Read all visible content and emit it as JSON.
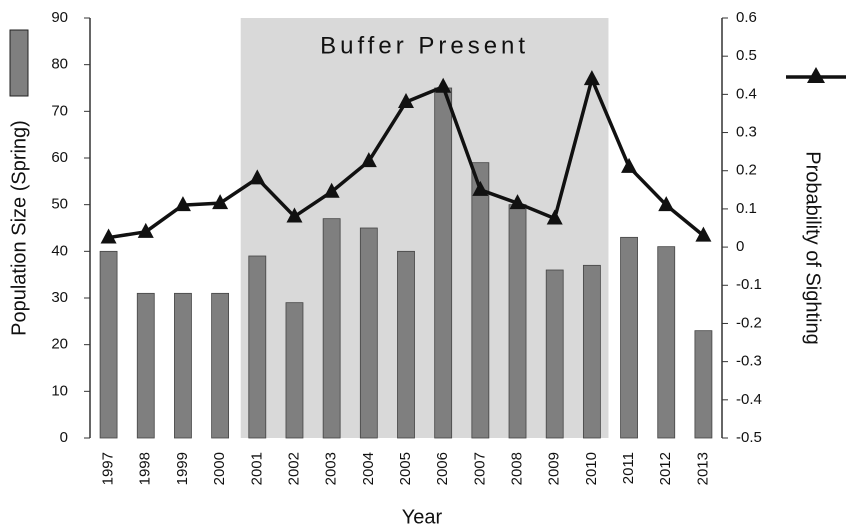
{
  "chart_data": {
    "type": "bar_line",
    "categories": [
      "1997",
      "1998",
      "1999",
      "2000",
      "2001",
      "2002",
      "2003",
      "2004",
      "2005",
      "2006",
      "2007",
      "2008",
      "2009",
      "2010",
      "2011",
      "2012",
      "2013"
    ],
    "xlabel": "Year",
    "ylabel": "Population Size (Spring)",
    "y2label": "Probability of Sighting",
    "ylim": [
      0,
      90
    ],
    "yticks": [
      0,
      10,
      20,
      30,
      40,
      50,
      60,
      70,
      80,
      90
    ],
    "y2lim": [
      -0.5,
      0.6
    ],
    "y2ticks": [
      -0.5,
      -0.4,
      -0.3,
      -0.2,
      -0.1,
      0,
      0.1,
      0.2,
      0.3,
      0.4,
      0.5,
      0.6
    ],
    "region": {
      "label": "Buffer Present",
      "from": "2001",
      "to": "2010",
      "color": "#d9d9d9"
    },
    "series": [
      {
        "type": "bar",
        "color": "#7f7f7f",
        "values": [
          40,
          31,
          31,
          31,
          39,
          29,
          47,
          45,
          40,
          75,
          59,
          50,
          36,
          37,
          43,
          41,
          23
        ]
      },
      {
        "type": "line",
        "axis": "y2",
        "color": "#111111",
        "values": [
          0.025,
          0.04,
          0.11,
          0.115,
          0.18,
          0.08,
          0.145,
          0.225,
          0.38,
          0.42,
          0.15,
          0.115,
          0.075,
          0.44,
          0.21,
          0.11,
          0.03
        ]
      }
    ]
  }
}
